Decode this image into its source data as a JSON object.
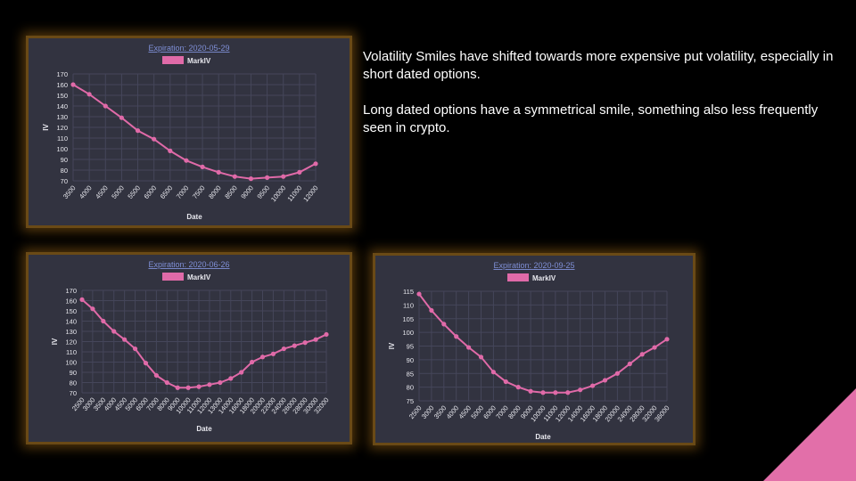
{
  "commentary": {
    "paragraph_1": "Volatility Smiles have shifted towards more expensive put volatility, especially in short dated options.",
    "paragraph_2": "Long dated options have a symmetrical smile, something also less frequently seen in crypto."
  },
  "colors": {
    "series": "#e06aa8",
    "panel_bg": "#323340",
    "panel_glow": "#8a5a14",
    "corner": "#e26fa9",
    "title": "#7f8fd6"
  },
  "chart_data": [
    {
      "type": "line",
      "title": "Expiration: 2020-05-29",
      "xlabel": "Date",
      "ylabel": "IV",
      "legend_position": "top",
      "ylim": [
        70,
        170
      ],
      "yticks": [
        70,
        80,
        90,
        100,
        110,
        120,
        130,
        140,
        150,
        160,
        170
      ],
      "grid": true,
      "categories": [
        "3500",
        "4000",
        "4500",
        "5000",
        "5500",
        "6000",
        "6500",
        "7000",
        "7500",
        "8000",
        "8500",
        "9000",
        "9500",
        "10000",
        "11000",
        "12000"
      ],
      "series": [
        {
          "name": "MarkIV",
          "values": [
            160,
            151,
            140,
            129,
            117,
            109,
            98,
            89,
            83,
            78,
            74,
            72,
            73,
            74,
            78,
            86
          ]
        }
      ]
    },
    {
      "type": "line",
      "title": "Expiration: 2020-06-26",
      "xlabel": "Date",
      "ylabel": "IV",
      "legend_position": "top",
      "ylim": [
        70,
        170
      ],
      "yticks": [
        70,
        80,
        90,
        100,
        110,
        120,
        130,
        140,
        150,
        160,
        170
      ],
      "grid": true,
      "categories": [
        "2500",
        "3000",
        "3500",
        "4000",
        "4500",
        "5000",
        "6000",
        "7000",
        "8000",
        "9000",
        "10000",
        "11000",
        "12000",
        "13000",
        "14000",
        "16000",
        "18000",
        "20000",
        "22000",
        "24000",
        "26000",
        "28000",
        "30000",
        "32000"
      ],
      "series": [
        {
          "name": "MarkIV",
          "values": [
            161,
            152,
            140,
            130,
            122,
            113,
            99,
            87,
            80,
            75,
            75,
            76,
            78,
            80,
            84,
            90,
            100,
            105,
            108,
            113,
            116,
            119,
            122,
            127
          ]
        }
      ]
    },
    {
      "type": "line",
      "title": "Expiration: 2020-09-25",
      "xlabel": "Date",
      "ylabel": "IV",
      "legend_position": "top",
      "ylim": [
        75,
        115
      ],
      "yticks": [
        75,
        80,
        85,
        90,
        95,
        100,
        105,
        110,
        115
      ],
      "grid": true,
      "categories": [
        "2500",
        "3000",
        "3500",
        "4000",
        "4500",
        "5000",
        "6000",
        "7000",
        "8000",
        "9000",
        "10000",
        "11000",
        "12000",
        "14000",
        "16000",
        "18000",
        "20000",
        "24000",
        "28000",
        "32000",
        "36000"
      ],
      "series": [
        {
          "name": "MarkIV",
          "values": [
            114,
            108,
            103,
            98.5,
            94.5,
            91,
            85.5,
            82,
            80,
            78.5,
            78,
            78,
            78,
            79,
            80.5,
            82.5,
            85,
            88.5,
            92,
            94.5,
            97.5
          ]
        }
      ]
    }
  ]
}
